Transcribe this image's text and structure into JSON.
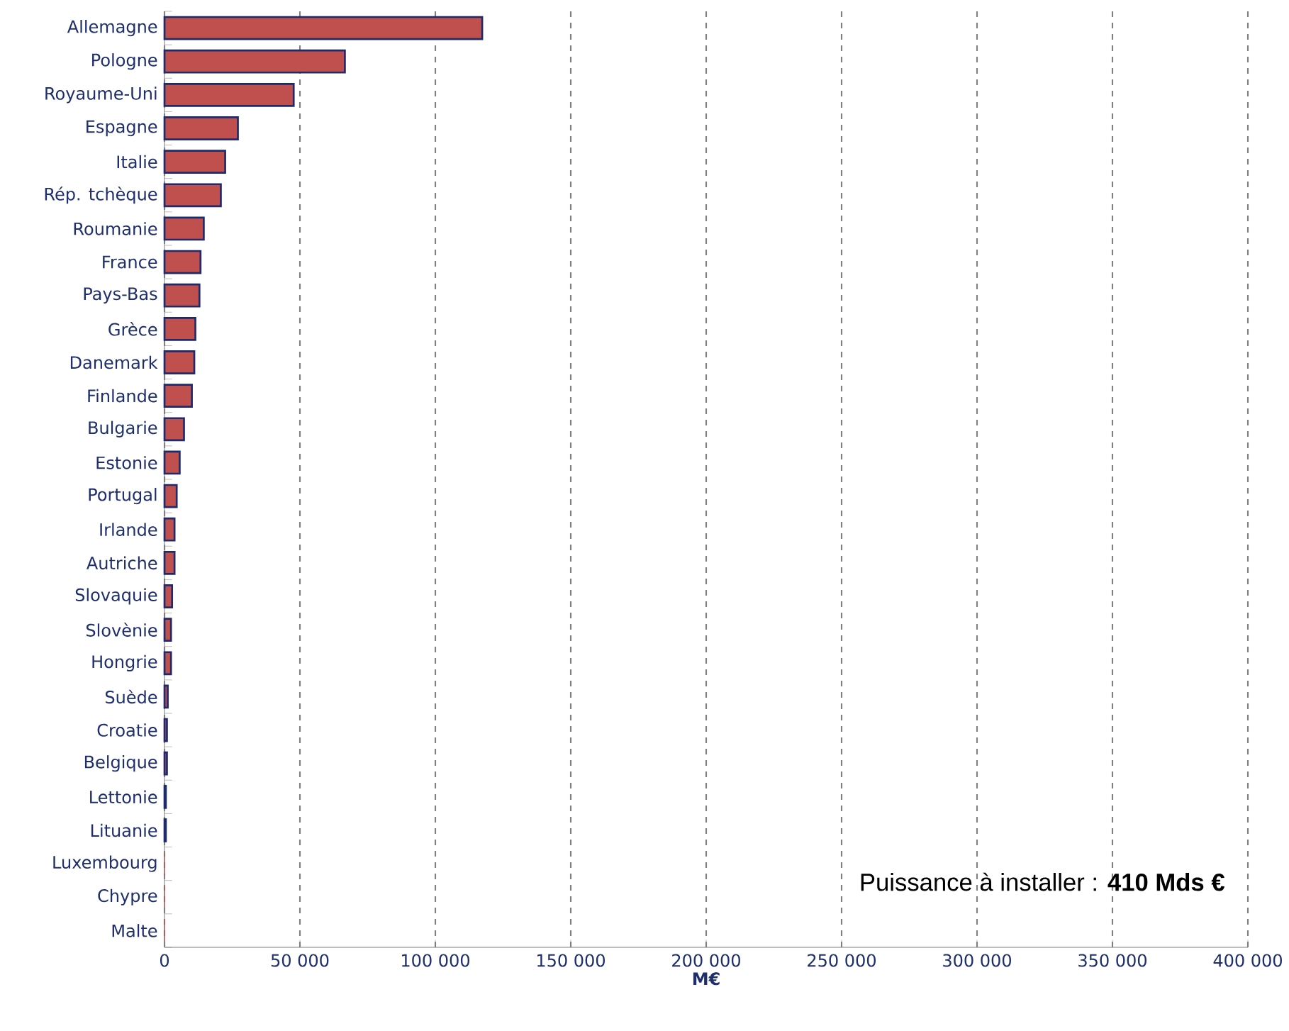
{
  "chart_data": {
    "type": "bar",
    "orientation": "horizontal",
    "color": "#c0504d",
    "categories": [
      "Allemagne",
      "Pologne",
      "Royaume-Uni",
      "Espagne",
      "Italie",
      "Rép. tchèque",
      "Roumanie",
      "France",
      "Pays-Bas",
      "Grèce",
      "Danemark",
      "Finlande",
      "Bulgarie",
      "Estonie",
      "Portugal",
      "Irlande",
      "Autriche",
      "Slovaquie",
      "Slovènie",
      "Hongrie",
      "Suède",
      "Croatie",
      "Belgique",
      "Lettonie",
      "Lituanie",
      "Luxembourg",
      "Chypre",
      "Malte"
    ],
    "values": [
      117300,
      66600,
      47700,
      27100,
      22400,
      20800,
      14500,
      13300,
      12900,
      11400,
      11000,
      10100,
      7200,
      5600,
      4500,
      3700,
      3700,
      2800,
      2400,
      2400,
      1200,
      900,
      900,
      500,
      500,
      0,
      0,
      0
    ],
    "xlim": [
      0,
      400000
    ],
    "xticks": [
      0,
      {
        "value": 50000,
        "label": "50 000"
      },
      {
        "value": 100000,
        "label": "100 000"
      },
      {
        "value": 150000,
        "label": "150 000"
      },
      {
        "value": 200000,
        "label": "200 000"
      },
      {
        "value": 250000,
        "label": "250 000"
      },
      {
        "value": 300000,
        "label": "300 000"
      },
      {
        "value": 350000,
        "label": "350 000"
      },
      {
        "value": 400000,
        "label": "400 000"
      }
    ],
    "xlabel": "M€",
    "grid": "x",
    "annotations": [
      "Puissance à installer : **410 Mds €**"
    ]
  }
}
